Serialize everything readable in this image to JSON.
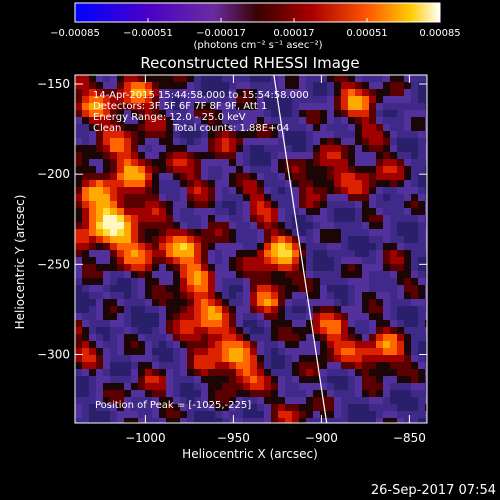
{
  "chart_data": {
    "type": "heatmap",
    "title": "Reconstructed RHESSI Image",
    "xlabel": "Heliocentric X (arcsec)",
    "ylabel": "Heliocentric Y (arcsec)",
    "xlim": [
      -1040,
      -840
    ],
    "ylim": [
      -338,
      -145
    ],
    "x_ticks": [
      {
        "value": -1000,
        "label": "−1000"
      },
      {
        "value": -950,
        "label": "−950"
      },
      {
        "value": -900,
        "label": "−900"
      },
      {
        "value": -850,
        "label": "−850"
      }
    ],
    "y_ticks": [
      {
        "value": -150,
        "label": "−150"
      },
      {
        "value": -200,
        "label": "−200"
      },
      {
        "value": -250,
        "label": "−250"
      },
      {
        "value": -300,
        "label": "−300"
      }
    ],
    "colorbar": {
      "range": [
        -0.00085,
        0.00085
      ],
      "ticks": [
        {
          "value": -0.00085,
          "label": "−0.00085"
        },
        {
          "value": -0.00051,
          "label": "−0.00051"
        },
        {
          "value": -0.00017,
          "label": "−0.00017"
        },
        {
          "value": 0.00017,
          "label": "0.00017"
        },
        {
          "value": 0.00051,
          "label": "0.00051"
        },
        {
          "value": 0.00085,
          "label": "0.00085"
        }
      ],
      "unit_label": "(photons cm⁻² s⁻¹ asec⁻²)"
    },
    "annotations": [
      "14-Apr-2015 15:44:58.000 to 15:54:58.000",
      "Detectors: 3F 5F 6F 7F 8F 9F, Att 1",
      "Energy Range: 12.0 - 25.0 keV",
      "Clean",
      "Total counts: 1.88E+04",
      "Position of Peak = [-1025,-225]"
    ],
    "limb_line": {
      "x_start": -927,
      "y_start": -145,
      "x_end": -897,
      "y_end": -338
    },
    "timestamp": "26-Sep-2017 07:54"
  }
}
